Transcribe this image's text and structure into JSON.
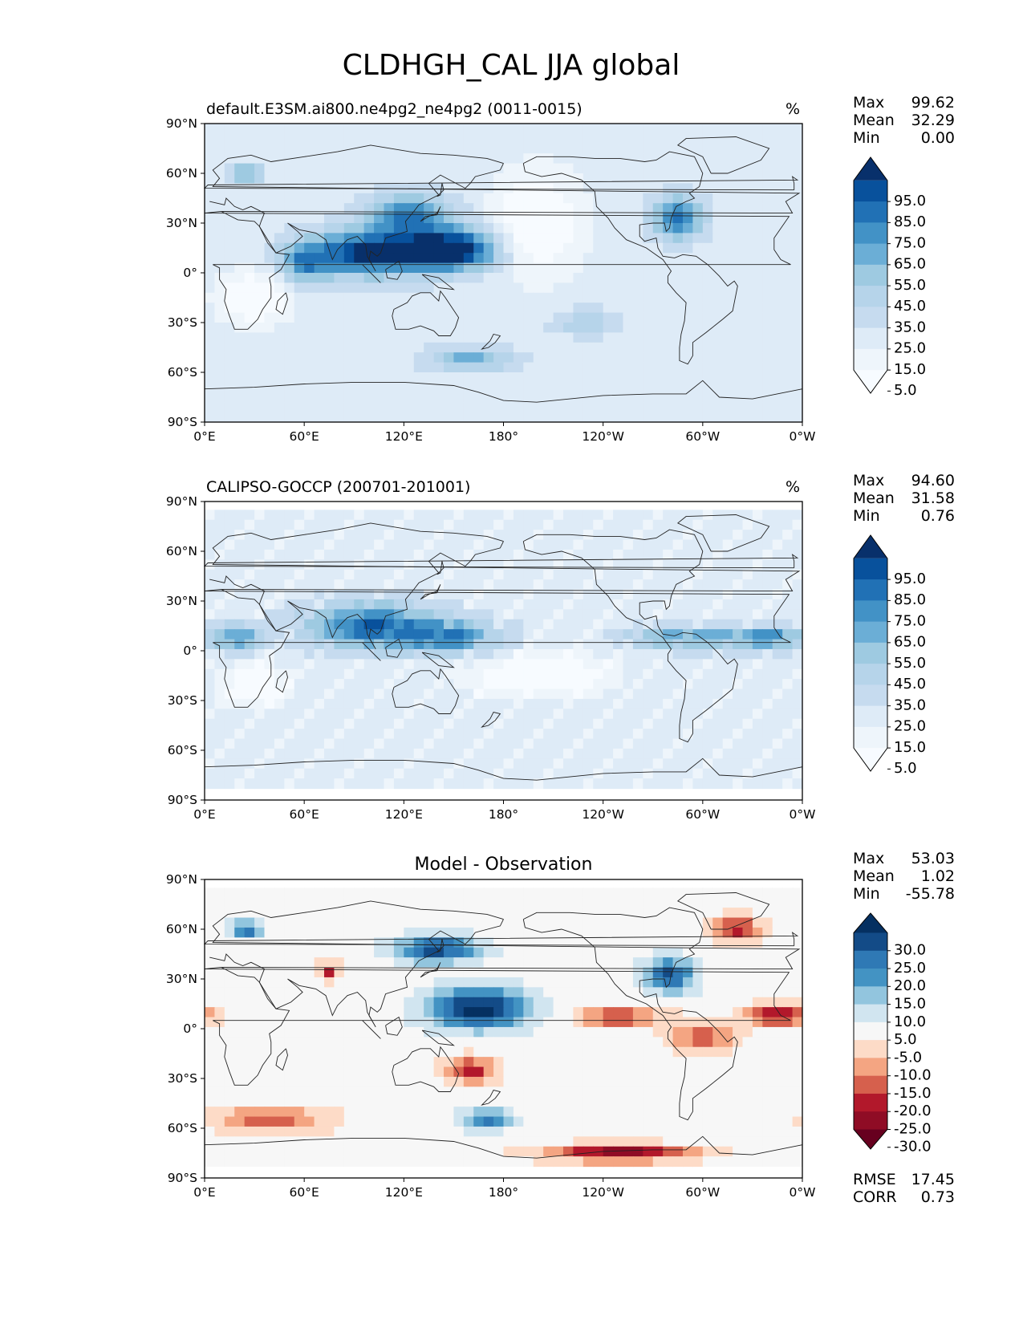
{
  "figure": {
    "title": "CLDHGH_CAL JJA global"
  },
  "axes": {
    "lat_ticks": [
      "90°N",
      "60°N",
      "30°N",
      "0°",
      "30°S",
      "60°S",
      "90°S"
    ],
    "lon_ticks": [
      "0°E",
      "60°E",
      "120°E",
      "180°",
      "120°W",
      "60°W",
      "0°W"
    ]
  },
  "panels": [
    {
      "id": "model",
      "title_left": "default.E3SM.ai800.ne4pg2_ne4pg2 (0011-0015)",
      "title_center": "",
      "units": "%",
      "stats": [
        {
          "label": "Max",
          "value": "99.62"
        },
        {
          "label": "Mean",
          "value": "32.29"
        },
        {
          "label": "Min",
          "value": "0.00"
        }
      ],
      "extra_stats": [],
      "colorbar": {
        "labels": [
          "95.0",
          "85.0",
          "75.0",
          "65.0",
          "55.0",
          "45.0",
          "35.0",
          "25.0",
          "15.0",
          "5.0"
        ],
        "colors": [
          "#08306b",
          "#08519c",
          "#2171b5",
          "#4292c6",
          "#6baed6",
          "#9ecae1",
          "#b6d4ea",
          "#c6dbef",
          "#deebf7",
          "#eef5fb",
          "#f7fbff"
        ]
      }
    },
    {
      "id": "obs",
      "title_left": "CALIPSO-GOCCP (200701-201001)",
      "title_center": "",
      "units": "%",
      "stats": [
        {
          "label": "Max",
          "value": "94.60"
        },
        {
          "label": "Mean",
          "value": "31.58"
        },
        {
          "label": "Min",
          "value": "0.76"
        }
      ],
      "extra_stats": [],
      "colorbar": {
        "labels": [
          "95.0",
          "85.0",
          "75.0",
          "65.0",
          "55.0",
          "45.0",
          "35.0",
          "25.0",
          "15.0",
          "5.0"
        ],
        "colors": [
          "#08306b",
          "#08519c",
          "#2171b5",
          "#4292c6",
          "#6baed6",
          "#9ecae1",
          "#b6d4ea",
          "#c6dbef",
          "#deebf7",
          "#eef5fb",
          "#f7fbff"
        ]
      }
    },
    {
      "id": "diff",
      "title_left": "",
      "title_center": "Model - Observation",
      "units": "",
      "stats": [
        {
          "label": "Max",
          "value": "53.03"
        },
        {
          "label": "Mean",
          "value": "1.02"
        },
        {
          "label": "Min",
          "value": "-55.78"
        }
      ],
      "extra_stats": [
        {
          "label": "RMSE",
          "value": "17.45"
        },
        {
          "label": "CORR",
          "value": "0.73"
        }
      ],
      "colorbar": {
        "labels": [
          "30.0",
          "25.0",
          "20.0",
          "15.0",
          "10.0",
          "5.0",
          "-5.0",
          "-10.0",
          "-15.0",
          "-20.0",
          "-25.0",
          "-30.0"
        ],
        "colors": [
          "#053061",
          "#134b87",
          "#2f79b5",
          "#4393c3",
          "#92c5de",
          "#d1e5f0",
          "#f7f7f7",
          "#fddbc7",
          "#f4a582",
          "#d6604d",
          "#b2182b",
          "#8f0c25",
          "#67001f"
        ]
      }
    }
  ]
}
